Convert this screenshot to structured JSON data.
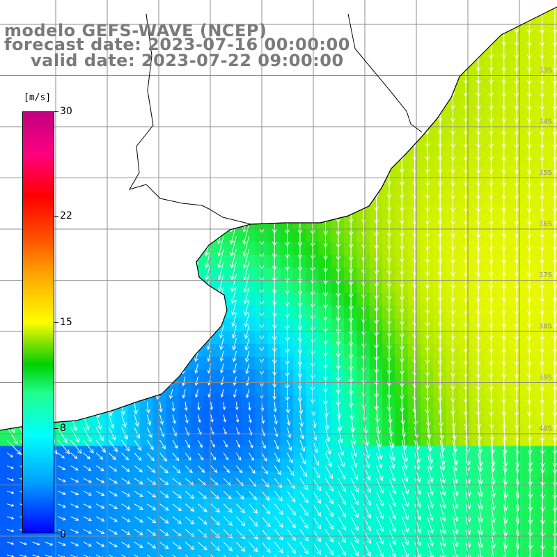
{
  "title": {
    "line1": "modelo GEFS-WAVE (NCEP)",
    "line2": "forecast date: 2023-07-16 00:00:00",
    "line3": "valid date: 2023-07-22 09:00:00"
  },
  "colorbar": {
    "unit": "[m/s]",
    "ticks": [
      "30",
      "22",
      "15",
      "8",
      "0"
    ],
    "tick_values": [
      30,
      22,
      15,
      8,
      0
    ],
    "colors": {
      "low": "#0000ff",
      "mid_low": "#00ffff",
      "mid": "#00d000",
      "mid_high": "#ffff00",
      "high": "#ff0000",
      "top": "#c00080"
    }
  },
  "map": {
    "lat_labels": [
      "33S",
      "34S",
      "35S",
      "36S",
      "37S",
      "38S",
      "39S",
      "40S",
      "41S"
    ],
    "wind_direction": "southward, turning eastward in the south-west",
    "land_color": "#ffffff",
    "coastline_color": "#000000",
    "grid_color": "#8c8c8c"
  }
}
